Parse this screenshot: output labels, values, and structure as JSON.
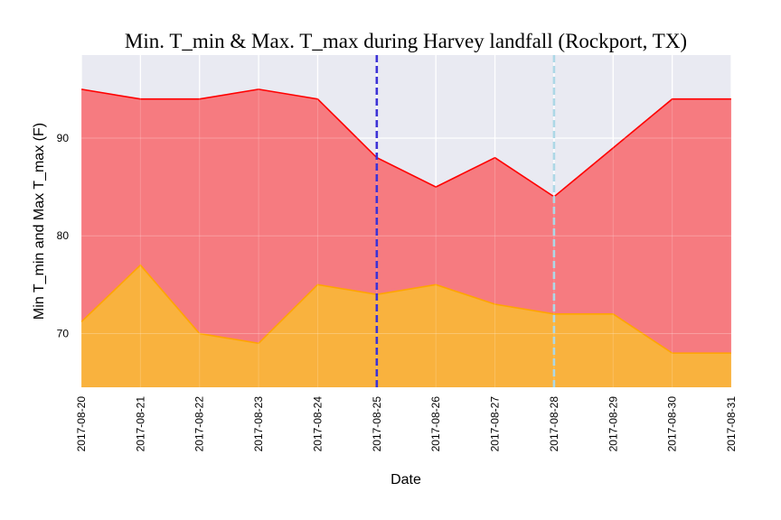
{
  "chart_data": {
    "type": "area",
    "title": "Min. T_min & Max. T_max during Harvey landfall (Rockport, TX)",
    "xlabel": "Date",
    "ylabel": "Min T_min and Max T_max (F)",
    "x": [
      "2017-08-20",
      "2017-08-21",
      "2017-08-22",
      "2017-08-23",
      "2017-08-24",
      "2017-08-25",
      "2017-08-26",
      "2017-08-27",
      "2017-08-28",
      "2017-08-29",
      "2017-08-30",
      "2017-08-31"
    ],
    "series": [
      {
        "values": [
          95,
          94,
          94,
          95,
          94,
          88,
          85,
          88,
          84,
          89,
          94,
          94
        ],
        "color": "#f77579",
        "line_color": "#ff0000"
      },
      {
        "values": [
          71.2,
          77,
          70,
          69,
          75,
          74,
          75,
          73,
          72,
          72,
          68,
          68
        ],
        "color": "#f9b53a",
        "line_color": "#ffa500"
      }
    ],
    "yticks": [
      70,
      80,
      90
    ],
    "ylim": [
      64.5,
      98.5
    ],
    "vlines": [
      {
        "x": "2017-08-25",
        "color": "#3c32d6",
        "style": "dashed"
      },
      {
        "x": "2017-08-28",
        "color": "#add8e6",
        "style": "dashed"
      }
    ],
    "grid": true,
    "background": "#e9eaf2"
  }
}
